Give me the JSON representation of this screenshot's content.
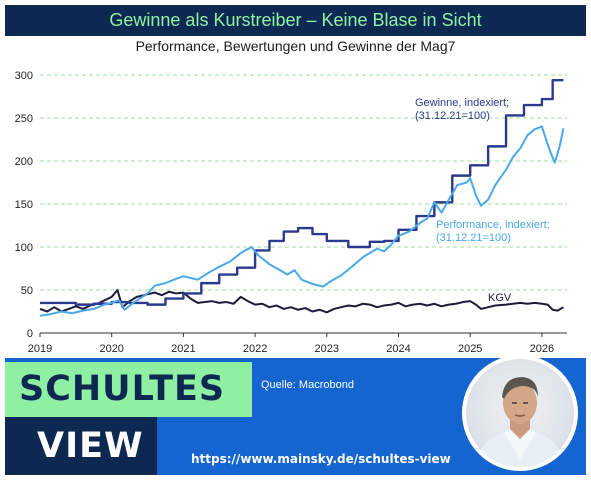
{
  "banner": {
    "title": "Gewinne als Kurstreiber – Keine Blase in Sicht"
  },
  "chart_data": {
    "type": "line",
    "title": "Performance, Bewertungen und Gewinne der Mag7",
    "xlabel": "",
    "ylabel": "",
    "xlim": [
      2019.0,
      2026.35
    ],
    "ylim": [
      0,
      300
    ],
    "x_ticks": [
      "2019",
      "2020",
      "2021",
      "2022",
      "2023",
      "2024",
      "2025",
      "2026"
    ],
    "y_ticks": [
      "0",
      "50",
      "100",
      "150",
      "200",
      "250",
      "300"
    ],
    "grid": true,
    "legend": "inline labels",
    "series": [
      {
        "name": "Gewinne, indexiert; (31.12.21=100)",
        "label_lines": [
          "Gewinne, indexiert;",
          "(31.12.21=100)"
        ],
        "color": "#2b3a8c",
        "step": true,
        "points": [
          [
            2019.0,
            35
          ],
          [
            2019.25,
            35
          ],
          [
            2019.5,
            33
          ],
          [
            2019.75,
            34
          ],
          [
            2020.0,
            36
          ],
          [
            2020.25,
            35
          ],
          [
            2020.5,
            33
          ],
          [
            2020.75,
            40
          ],
          [
            2021.0,
            46
          ],
          [
            2021.25,
            58
          ],
          [
            2021.5,
            68
          ],
          [
            2021.75,
            76
          ],
          [
            2022.0,
            96
          ],
          [
            2022.2,
            107
          ],
          [
            2022.4,
            118
          ],
          [
            2022.6,
            122
          ],
          [
            2022.8,
            115
          ],
          [
            2023.0,
            107
          ],
          [
            2023.3,
            100
          ],
          [
            2023.6,
            106
          ],
          [
            2023.8,
            107
          ],
          [
            2024.0,
            120
          ],
          [
            2024.25,
            136
          ],
          [
            2024.5,
            152
          ],
          [
            2024.75,
            183
          ],
          [
            2025.0,
            195
          ],
          [
            2025.25,
            217
          ],
          [
            2025.5,
            253
          ],
          [
            2025.75,
            265
          ],
          [
            2026.0,
            272
          ],
          [
            2026.15,
            294
          ],
          [
            2026.3,
            294
          ]
        ]
      },
      {
        "name": "Performance, indexiert; (31.12.21=100)",
        "label_lines": [
          "Performance, indexiert;",
          "(31.12.21=100)"
        ],
        "color": "#4aa8ea",
        "step": false,
        "points": [
          [
            2019.0,
            20
          ],
          [
            2019.15,
            22
          ],
          [
            2019.3,
            25
          ],
          [
            2019.45,
            23
          ],
          [
            2019.6,
            26
          ],
          [
            2019.75,
            28
          ],
          [
            2019.9,
            33
          ],
          [
            2020.0,
            35
          ],
          [
            2020.1,
            38
          ],
          [
            2020.18,
            27
          ],
          [
            2020.3,
            35
          ],
          [
            2020.5,
            46
          ],
          [
            2020.6,
            55
          ],
          [
            2020.75,
            58
          ],
          [
            2020.9,
            63
          ],
          [
            2021.0,
            66
          ],
          [
            2021.2,
            62
          ],
          [
            2021.35,
            70
          ],
          [
            2021.5,
            77
          ],
          [
            2021.65,
            83
          ],
          [
            2021.8,
            93
          ],
          [
            2021.95,
            100
          ],
          [
            2022.05,
            90
          ],
          [
            2022.2,
            80
          ],
          [
            2022.35,
            73
          ],
          [
            2022.45,
            68
          ],
          [
            2022.55,
            73
          ],
          [
            2022.65,
            62
          ],
          [
            2022.8,
            57
          ],
          [
            2022.95,
            54
          ],
          [
            2023.05,
            60
          ],
          [
            2023.2,
            67
          ],
          [
            2023.35,
            77
          ],
          [
            2023.5,
            88
          ],
          [
            2023.6,
            93
          ],
          [
            2023.7,
            98
          ],
          [
            2023.8,
            95
          ],
          [
            2023.9,
            103
          ],
          [
            2024.0,
            113
          ],
          [
            2024.15,
            118
          ],
          [
            2024.3,
            128
          ],
          [
            2024.4,
            133
          ],
          [
            2024.5,
            152
          ],
          [
            2024.6,
            140
          ],
          [
            2024.7,
            155
          ],
          [
            2024.82,
            172
          ],
          [
            2024.95,
            175
          ],
          [
            2025.0,
            180
          ],
          [
            2025.08,
            160
          ],
          [
            2025.15,
            148
          ],
          [
            2025.25,
            155
          ],
          [
            2025.35,
            172
          ],
          [
            2025.5,
            190
          ],
          [
            2025.6,
            205
          ],
          [
            2025.7,
            215
          ],
          [
            2025.8,
            230
          ],
          [
            2025.9,
            237
          ],
          [
            2026.0,
            240
          ],
          [
            2026.07,
            222
          ],
          [
            2026.13,
            208
          ],
          [
            2026.18,
            198
          ],
          [
            2026.25,
            218
          ],
          [
            2026.3,
            238
          ]
        ]
      },
      {
        "name": "KGV",
        "label_lines": [
          "KGV"
        ],
        "color": "#1c1c3a",
        "step": false,
        "points": [
          [
            2019.0,
            28
          ],
          [
            2019.1,
            25
          ],
          [
            2019.2,
            30
          ],
          [
            2019.3,
            25
          ],
          [
            2019.4,
            28
          ],
          [
            2019.5,
            31
          ],
          [
            2019.6,
            28
          ],
          [
            2019.7,
            32
          ],
          [
            2019.8,
            34
          ],
          [
            2019.9,
            38
          ],
          [
            2020.0,
            42
          ],
          [
            2020.08,
            50
          ],
          [
            2020.15,
            30
          ],
          [
            2020.25,
            37
          ],
          [
            2020.35,
            42
          ],
          [
            2020.5,
            45
          ],
          [
            2020.6,
            47
          ],
          [
            2020.7,
            44
          ],
          [
            2020.8,
            48
          ],
          [
            2020.9,
            46
          ],
          [
            2021.0,
            47
          ],
          [
            2021.1,
            40
          ],
          [
            2021.2,
            35
          ],
          [
            2021.3,
            36
          ],
          [
            2021.4,
            37
          ],
          [
            2021.5,
            35
          ],
          [
            2021.6,
            36
          ],
          [
            2021.7,
            34
          ],
          [
            2021.8,
            42
          ],
          [
            2021.9,
            37
          ],
          [
            2022.0,
            33
          ],
          [
            2022.1,
            34
          ],
          [
            2022.2,
            30
          ],
          [
            2022.3,
            32
          ],
          [
            2022.4,
            28
          ],
          [
            2022.5,
            30
          ],
          [
            2022.6,
            27
          ],
          [
            2022.7,
            29
          ],
          [
            2022.8,
            25
          ],
          [
            2022.9,
            27
          ],
          [
            2023.0,
            24
          ],
          [
            2023.1,
            28
          ],
          [
            2023.2,
            30
          ],
          [
            2023.3,
            32
          ],
          [
            2023.4,
            31
          ],
          [
            2023.5,
            34
          ],
          [
            2023.6,
            33
          ],
          [
            2023.7,
            30
          ],
          [
            2023.8,
            32
          ],
          [
            2023.9,
            33
          ],
          [
            2024.0,
            35
          ],
          [
            2024.1,
            31
          ],
          [
            2024.2,
            33
          ],
          [
            2024.3,
            34
          ],
          [
            2024.4,
            32
          ],
          [
            2024.5,
            34
          ],
          [
            2024.6,
            31
          ],
          [
            2024.7,
            33
          ],
          [
            2024.8,
            34
          ],
          [
            2024.9,
            36
          ],
          [
            2025.0,
            37
          ],
          [
            2025.08,
            33
          ],
          [
            2025.15,
            28
          ],
          [
            2025.25,
            30
          ],
          [
            2025.35,
            32
          ],
          [
            2025.5,
            33
          ],
          [
            2025.6,
            34
          ],
          [
            2025.7,
            35
          ],
          [
            2025.8,
            34
          ],
          [
            2025.9,
            35
          ],
          [
            2026.0,
            34
          ],
          [
            2026.08,
            33
          ],
          [
            2026.15,
            27
          ],
          [
            2026.22,
            26
          ],
          [
            2026.3,
            30
          ]
        ]
      }
    ]
  },
  "footer": {
    "brand_line1": "SCHULTES",
    "brand_line2": "VIEW",
    "source": "Quelle: Macrobond",
    "url": "https://www.mainsky.de/schultes-view"
  },
  "colors": {
    "navy": "#0d2851",
    "mint": "#8ff0a4",
    "blue": "#1565d1"
  }
}
